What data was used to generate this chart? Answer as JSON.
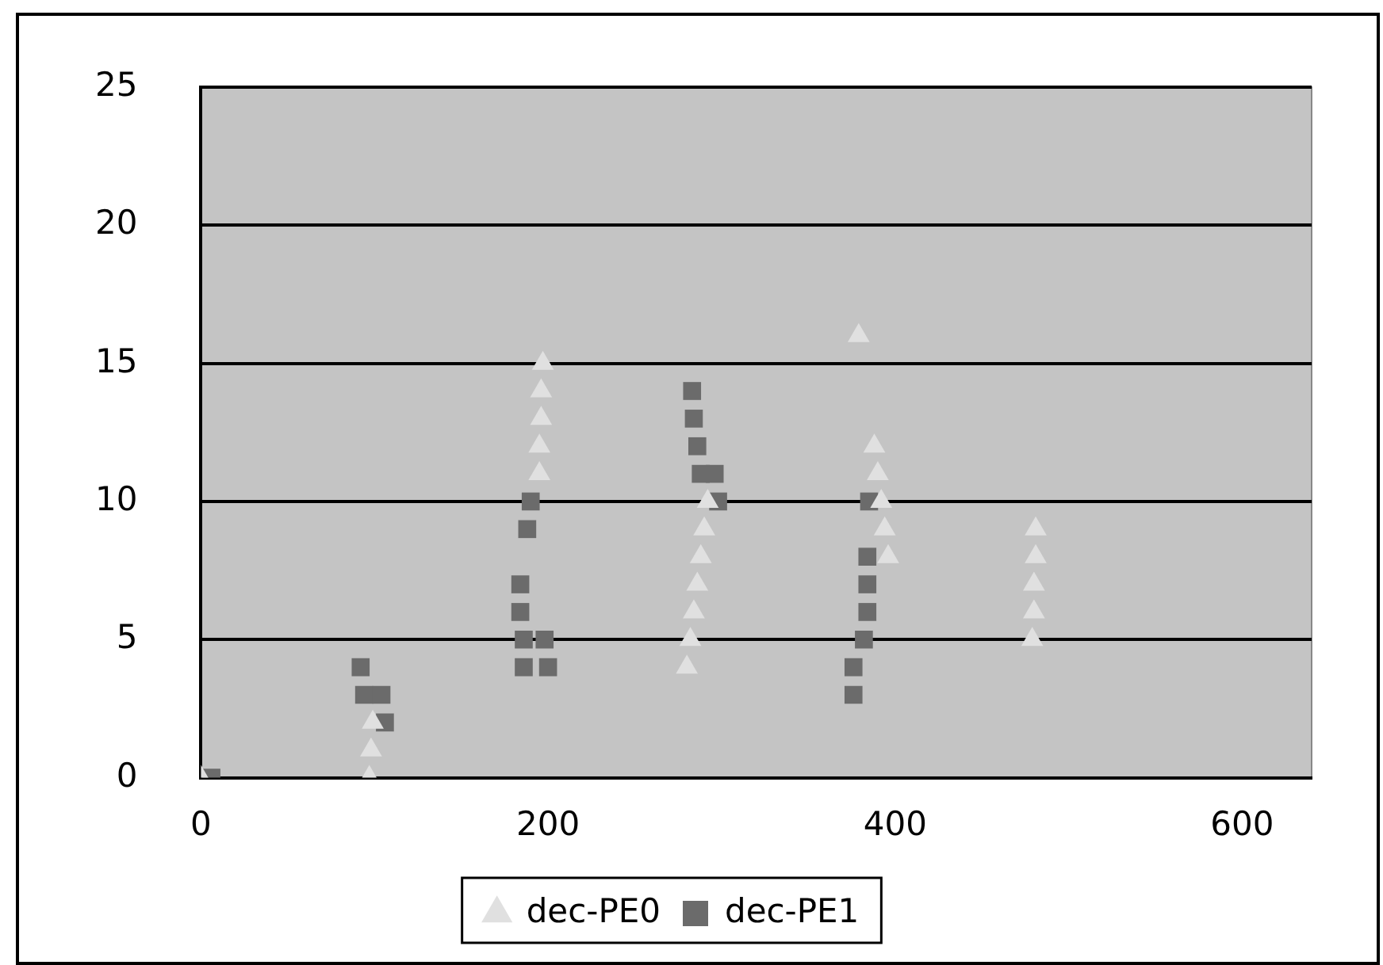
{
  "chart_data": {
    "type": "scatter",
    "xlim": [
      0,
      640
    ],
    "xticks": [
      0,
      200,
      400,
      600
    ],
    "ylim": [
      0,
      25
    ],
    "yticks": [
      0,
      5,
      10,
      15,
      20,
      25
    ],
    "grid": "y",
    "legend": "bottom",
    "series": [
      {
        "name": "dec-PE0",
        "color": "#e0e0e0",
        "marker": "triangle",
        "x": [
          0,
          97,
          98,
          99,
          195,
          195,
          196,
          196,
          197,
          280,
          282,
          284,
          286,
          288,
          290,
          292,
          379,
          388,
          390,
          392,
          394,
          396,
          481,
          481,
          480,
          480,
          479
        ],
        "values": [
          0,
          0,
          1,
          2,
          11,
          12,
          13,
          14,
          15,
          4,
          5,
          6,
          7,
          8,
          9,
          10,
          16,
          12,
          11,
          10,
          9,
          8,
          9,
          8,
          7,
          6,
          5
        ]
      },
      {
        "name": "dec-PE1",
        "color": "#6b6b6b",
        "marker": "square",
        "x": [
          6,
          92,
          94,
          104,
          106,
          190,
          188,
          184,
          184,
          186,
          186,
          198,
          200,
          283,
          284,
          286,
          288,
          296,
          298,
          385,
          384,
          384,
          384,
          382,
          376,
          376
        ],
        "values": [
          0,
          4,
          3,
          3,
          2,
          10,
          9,
          7,
          6,
          5,
          4,
          5,
          4,
          14,
          13,
          12,
          11,
          11,
          10,
          10,
          8,
          7,
          6,
          5,
          4,
          3
        ]
      }
    ]
  }
}
